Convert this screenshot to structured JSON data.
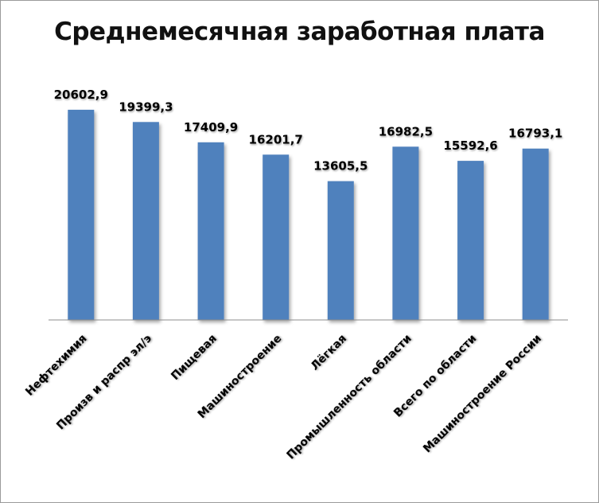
{
  "chart_data": {
    "type": "bar",
    "title": "Среднемесячная заработная плата",
    "categories": [
      "Нефтехимия",
      "Произв и распр эл/э",
      "Пищевая",
      "Машиностроение",
      "Лёгкая",
      "Промышленность области",
      "Всего по области",
      "Машиностроение России"
    ],
    "values": [
      20602.9,
      19399.3,
      17409.9,
      16201.7,
      13605.5,
      16982.5,
      15592.6,
      16793.1
    ],
    "value_labels": [
      "20602,9",
      "19399,3",
      "17409,9",
      "16201,7",
      "13605,5",
      "16982,5",
      "15592,6",
      "16793,1"
    ],
    "xlabel": "",
    "ylabel": "",
    "ylim": [
      0,
      22000
    ],
    "grid": false,
    "legend": "none",
    "bar_color": "#4f81bd"
  }
}
